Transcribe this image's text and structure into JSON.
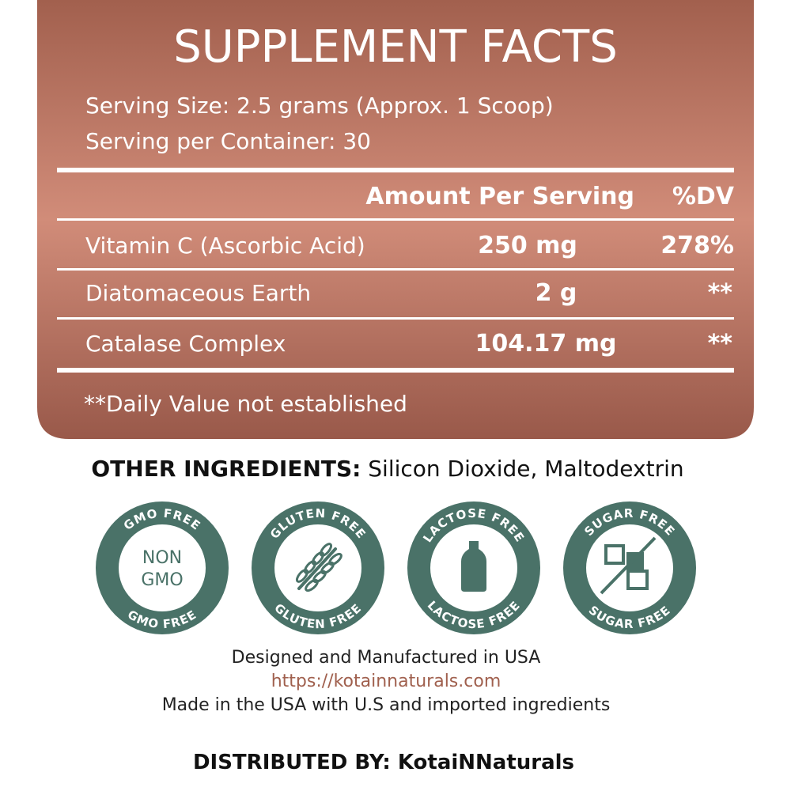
{
  "panel": {
    "title": "SUPPLEMENT FACTS",
    "serving_size": "Serving Size: 2.5 grams (Approx. 1 Scoop)",
    "servings": "Serving per Container: 30"
  },
  "table": {
    "header": [
      "Amount Per Serving",
      "%DV"
    ],
    "rows": [
      [
        "Vitamin C (Ascorbic Acid)",
        "250 mg",
        "278%"
      ],
      [
        "Diatomaceous Earth",
        "2 g",
        "**"
      ],
      [
        "Catalase Complex",
        "104.17 mg",
        "**"
      ]
    ]
  },
  "footnote": "**Daily Value not established",
  "other_ingredients": {
    "label": "OTHER INGREDIENTS:",
    "text": "Silicon Dioxide, Maltodextrin"
  },
  "badges": [
    {
      "top": "GMO FREE",
      "bottom": "GMO FREE",
      "center": [
        "NON",
        "GMO"
      ]
    },
    {
      "top": "GLUTEN FREE",
      "bottom": "GLUTEN FREE"
    },
    {
      "top": "LACTOSE FREE",
      "bottom": "LACTOSE FREE"
    },
    {
      "top": "SUGAR FREE",
      "bottom": "SUGAR FREE"
    }
  ],
  "footer": {
    "lines": [
      "Designed and Manufactured in USA",
      "https://kotainnaturals.com",
      "Made in the USA with U.S and imported ingredients"
    ],
    "distributed": "DISTRIBUTED BY: KotaiNNaturals"
  }
}
